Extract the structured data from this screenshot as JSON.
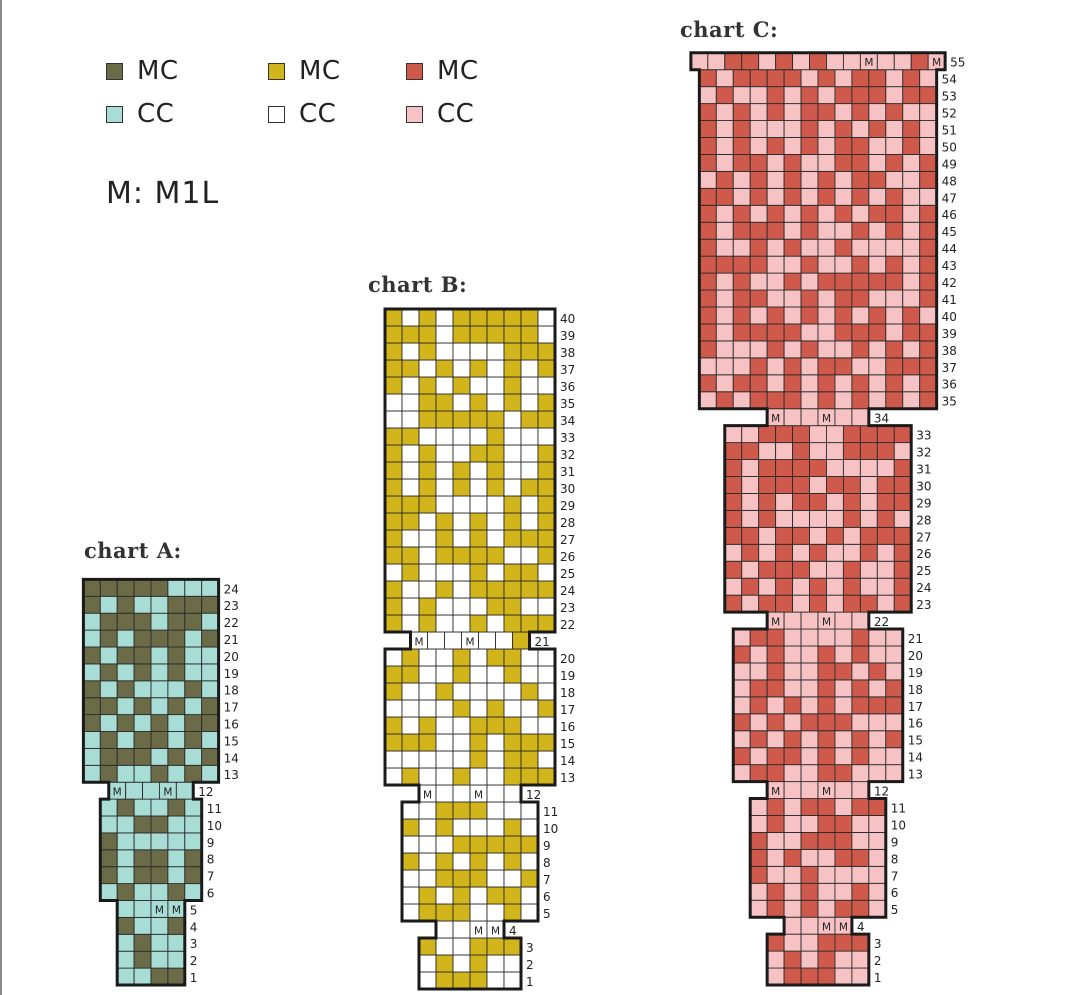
{
  "legend": {
    "groups": [
      {
        "mc_label": "MC",
        "cc_label": "CC",
        "mc_color": "#6b6c47",
        "cc_color": "#a8ddd6"
      },
      {
        "mc_label": "MC",
        "cc_label": "CC",
        "mc_color": "#d2b51a",
        "cc_color": "#ffffff"
      },
      {
        "mc_label": "MC",
        "cc_label": "CC",
        "mc_color": "#cf5a4c",
        "cc_color": "#f7c2c4"
      }
    ],
    "m_note": "M: M1L"
  },
  "charts": [
    {
      "id": "A",
      "title": "chart A:",
      "mc_color": "#6b6c47",
      "cc_color": "#a8ddd6",
      "m_symbol": "M",
      "grid": [
        "..##",
        ".#..",
        ".#..",
        "#..#",
        "..MM",
        ".#..#.",
        "#.##.#",
        "#.##.#",
        "#.....",
        "..##..",
        ".#..#.",
        "M..M.",
        ".#..#.#.",
        ".###.#.#",
        ".#.##.#.",
        "#.#.#.##",
        "##.#.#.#",
        "#.#...#.",
        ".#.#.#..",
        "#.##.#..",
        ".#.###.#",
        ".###.##.",
        "#.#..###",
        "#####..."
      ]
    },
    {
      "id": "B",
      "title": "chart B:",
      "mc_color": "#d2b51a",
      "cc_color": "#ffffff",
      "m_symbol": "M",
      "grid": [
        ".###..",
        ".#.#..",
        "#..###",
        "..MM",
        ".###..#.",
        ".#.#.##.",
        "..###..#",
        "#.#.#.#.",
        "...#####",
        "#.#...#.",
        "..###...",
        "M..M..",
        ".#..#..###",
        ".....#.##.",
        "###..#.###",
        "#.#..###..",
        "....#.#..#",
        "#..#....#.",
        "##..#..#..",
        ".#..#.##..",
        "M..M..#",
        "#.#..#.###",
        "#.#...##..",
        "#..#.#####",
        ".#...#.##.",
        "##.####..#",
        "#..#.#.###",
        "##.#.#.#.#",
        "###....#.#",
        "#.#.#.#.##",
        "#.#.#.#..#",
        "#.#..##..#",
        "##....#...",
        "..#####.##",
        "..##.#.#.#",
        "#.#.#..#..",
        "##.#.#.#.#",
        "#.#....###",
        "###.#####.",
        "#.#.#####."
      ]
    },
    {
      "id": "C",
      "title": "chart C:",
      "mc_color": "#cf5a4c",
      "cc_color": "#f7c2c4",
      "m_symbol": "M",
      "grid": [
        ".###..",
        ".#.#..",
        "#..###",
        "..MM",
        ".#.#.##.",
        ".#.#..#.",
        "#..#....",
        "#.#..##.",
        "#..###..",
        ".#..##..",
        ".#.##.##",
        "M..M..",
        ".##..##...",
        "#.##.#.#..",
        ".#.#.#.#.#",
        "#.#.###...",
        ".#.#.#.###",
        ".##..#.#.#",
        "..#..##.#.",
        "#.#..#.#..",
        ".##....#..",
        "M..M..",
        "#.##.#.##.#",
        ".#.#.#.#..#",
        "#.###..#..#",
        ".#.#.#..#.#",
        "##.##.#.###",
        "#.#....#.#.",
        "#.#.##.#.##",
        "#.###.##.##",
        "#.####....#",
        "##..#..###.",
        "..###..####",
        "M..M..",
        ".#.###.#.#.#.#",
        "#.##.#.#.#.#.#",
        "...#.#.##..###",
        "#...#.#..#.#.#",
        "#.####..###.##",
        "#.#.#.#.#.#.#.",
        "#.##..#.##...#",
        "#.#..#.#####.#",
        "####..#..#.#.#",
        "#..#.#..#....#",
        "#.###.#..#.#.#",
        "#.#.#.#.#.##.#",
        "##.#.#.#.#.#..",
        ".#.#.#.#.##..#",
        "#.##.#..##.#.#",
        "#.#.#.#.##..#.",
        "#.#...#.#.#.#.",
        "#.#.#.##.#.#..",
        ".#..#.#.###.##",
        "#.####.#.##.#.",
        "..##.#.#..M..#M"
      ]
    }
  ],
  "row_label_ranges": [
    {
      "chart": "A",
      "first": 1,
      "last": 24
    },
    {
      "chart": "B",
      "first": 1,
      "last": 40
    },
    {
      "chart": "C",
      "first": 1,
      "last": 55
    }
  ]
}
